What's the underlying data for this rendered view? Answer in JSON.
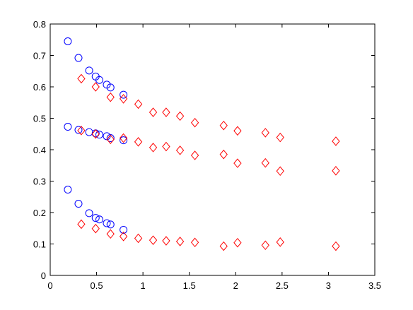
{
  "chart_data": {
    "type": "scatter",
    "xlim": [
      0,
      3.5
    ],
    "xticks": [
      0,
      0.5,
      1,
      1.5,
      2,
      2.5,
      3,
      3.5
    ],
    "ylim": [
      0,
      0.8
    ],
    "yticks": [
      0,
      0.1,
      0.2,
      0.3,
      0.4,
      0.5,
      0.6,
      0.7,
      0.8
    ],
    "grid": false,
    "series": [
      {
        "color": "#0000ff",
        "marker": "circle",
        "x": [
          0.19,
          0.305,
          0.42,
          0.49,
          0.53,
          0.61,
          0.65,
          0.79
        ],
        "values": [
          0.745,
          0.692,
          0.652,
          0.633,
          0.622,
          0.607,
          0.598,
          0.575
        ]
      },
      {
        "color": "#0000ff",
        "marker": "circle",
        "x": [
          0.19,
          0.305,
          0.42,
          0.49,
          0.53,
          0.61,
          0.65,
          0.79
        ],
        "values": [
          0.473,
          0.463,
          0.456,
          0.452,
          0.448,
          0.443,
          0.437,
          0.43
        ]
      },
      {
        "color": "#0000ff",
        "marker": "circle",
        "x": [
          0.19,
          0.305,
          0.42,
          0.49,
          0.53,
          0.61,
          0.65,
          0.79
        ],
        "values": [
          0.273,
          0.228,
          0.198,
          0.183,
          0.178,
          0.166,
          0.162,
          0.145
        ]
      },
      {
        "color": "#ff0000",
        "marker": "diamond",
        "x": [
          0.335,
          0.49,
          0.65,
          0.79,
          0.95,
          1.11,
          1.25,
          1.4,
          1.56,
          1.87,
          2.02,
          2.32,
          2.48,
          3.08
        ],
        "values": [
          0.626,
          0.6,
          0.567,
          0.562,
          0.545,
          0.519,
          0.519,
          0.507,
          0.486,
          0.477,
          0.46,
          0.454,
          0.439,
          0.427
        ]
      },
      {
        "color": "#ff0000",
        "marker": "diamond",
        "x": [
          0.335,
          0.49,
          0.65,
          0.79,
          0.95,
          1.11,
          1.25,
          1.4,
          1.56,
          1.87,
          2.02,
          2.32,
          2.48,
          3.08
        ],
        "values": [
          0.461,
          0.45,
          0.433,
          0.437,
          0.425,
          0.407,
          0.41,
          0.398,
          0.382,
          0.385,
          0.357,
          0.358,
          0.332,
          0.333
        ]
      },
      {
        "color": "#ff0000",
        "marker": "diamond",
        "x": [
          0.335,
          0.49,
          0.65,
          0.79,
          0.95,
          1.11,
          1.25,
          1.4,
          1.56,
          1.87,
          2.02,
          2.32,
          2.48,
          3.08
        ],
        "values": [
          0.163,
          0.149,
          0.132,
          0.124,
          0.118,
          0.112,
          0.11,
          0.108,
          0.105,
          0.093,
          0.104,
          0.096,
          0.106,
          0.093
        ]
      }
    ]
  }
}
